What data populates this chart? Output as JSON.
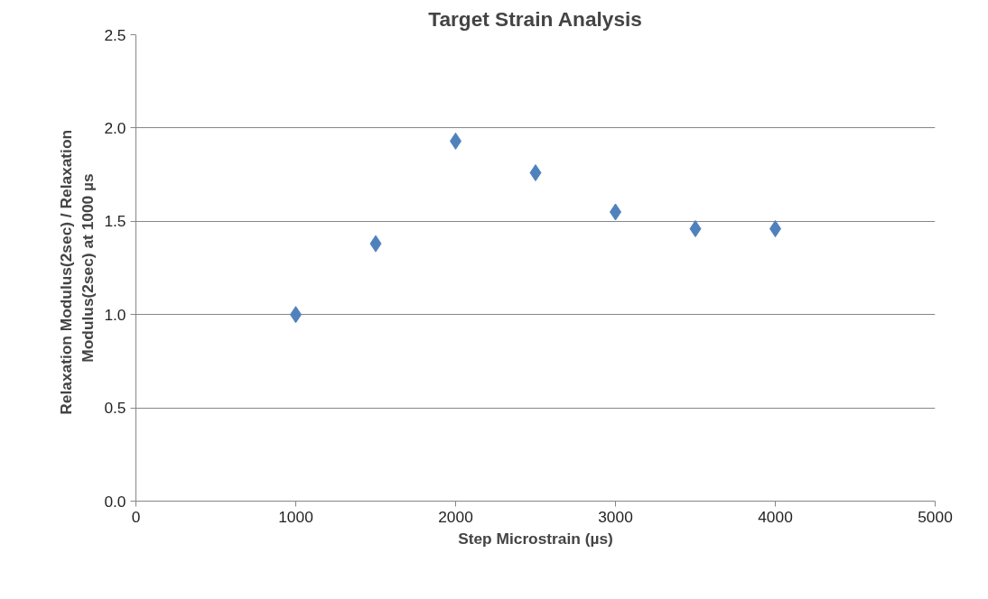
{
  "chart_data": {
    "type": "scatter",
    "title": "Target Strain Analysis",
    "xlabel": "Step Microstrain (µs)",
    "ylabel": "Relaxation Modulus(2sec) /   Relaxation\nModulus(2sec) at 1000 µs",
    "x": [
      1000,
      1500,
      2000,
      2500,
      3000,
      3500,
      4000
    ],
    "series": [
      {
        "color": "#4f81bd",
        "values": [
          1.0,
          1.38,
          1.93,
          1.76,
          1.55,
          1.46,
          1.46
        ]
      }
    ],
    "xlim": [
      0,
      5000
    ],
    "xticks": [
      0,
      1000,
      2000,
      3000,
      4000,
      5000
    ],
    "ylim": [
      0,
      2.5
    ],
    "yticks": [
      {
        "value": 0,
        "label": "0.0"
      },
      0.5,
      {
        "value": 1,
        "label": "1.0"
      },
      1.5,
      {
        "value": 2,
        "label": "2.0"
      },
      2.5
    ],
    "grid": "y",
    "marker": "diamond"
  }
}
